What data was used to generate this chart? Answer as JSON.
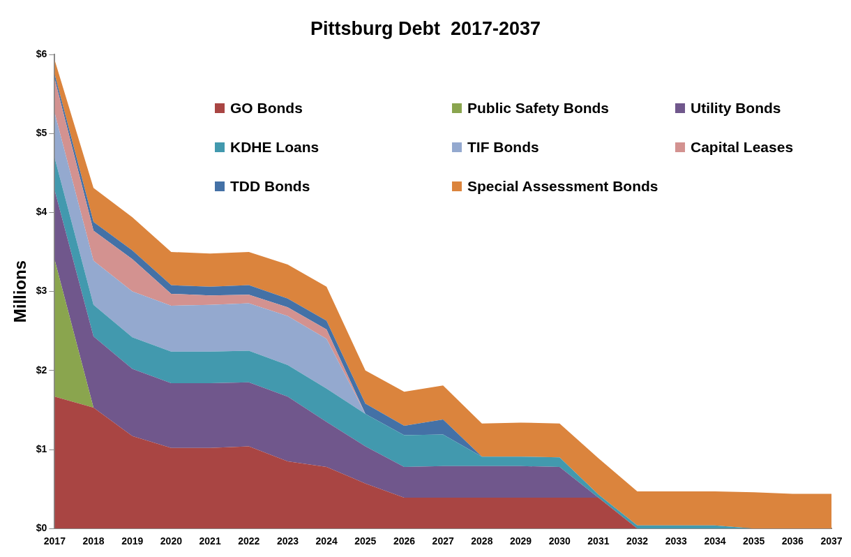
{
  "chart_data": {
    "type": "area",
    "title": "Pittsburg Debt  2017-2037",
    "ylabel": "Millions",
    "stacked": true,
    "legend": "top right",
    "grid": false,
    "categories": [
      "2017",
      "2018",
      "2019",
      "2020",
      "2021",
      "2022",
      "2023",
      "2024",
      "2025",
      "2026",
      "2027",
      "2028",
      "2029",
      "2030",
      "2031",
      "2032",
      "2033",
      "2034",
      "2035",
      "2036",
      "2037"
    ],
    "ylim": [
      0,
      6
    ],
    "yticks": [
      {
        "value": 0,
        "label": "$0"
      },
      {
        "value": 1,
        "label": "$1"
      },
      {
        "value": 2,
        "label": "$2"
      },
      {
        "value": 3,
        "label": "$3"
      },
      {
        "value": 4,
        "label": "$4"
      },
      {
        "value": 5,
        "label": "$5"
      },
      {
        "value": 6,
        "label": "$6"
      }
    ],
    "series": [
      {
        "name": "GO Bonds",
        "color": "#a94543",
        "values": [
          1.67,
          1.53,
          1.17,
          1.02,
          1.02,
          1.04,
          0.85,
          0.78,
          0.57,
          0.39,
          0.39,
          0.39,
          0.39,
          0.39,
          0.39,
          0,
          0,
          0,
          0,
          0,
          0
        ]
      },
      {
        "name": "Public Safety Bonds",
        "color": "#8aa54e",
        "values": [
          1.73,
          0,
          0,
          0,
          0,
          0,
          0,
          0,
          0,
          0,
          0,
          0,
          0,
          0,
          0,
          0,
          0,
          0,
          0,
          0,
          0
        ]
      },
      {
        "name": "Utility Bonds",
        "color": "#70578c",
        "values": [
          0.88,
          0.9,
          0.85,
          0.82,
          0.82,
          0.81,
          0.82,
          0.57,
          0.47,
          0.39,
          0.4,
          0.4,
          0.4,
          0.39,
          0,
          0,
          0,
          0,
          0,
          0,
          0
        ]
      },
      {
        "name": "KDHE Loans",
        "color": "#4299ae",
        "values": [
          0.41,
          0.4,
          0.4,
          0.4,
          0.4,
          0.4,
          0.4,
          0.42,
          0.41,
          0.4,
          0.4,
          0.12,
          0.12,
          0.12,
          0.04,
          0.04,
          0.04,
          0.04,
          0,
          0,
          0
        ]
      },
      {
        "name": "TIF Bonds",
        "color": "#94a9cf",
        "values": [
          0.57,
          0.56,
          0.58,
          0.58,
          0.59,
          0.6,
          0.62,
          0.63,
          0,
          0,
          0,
          0,
          0,
          0,
          0,
          0,
          0,
          0,
          0,
          0,
          0
        ]
      },
      {
        "name": "Capital Leases",
        "color": "#d39290",
        "values": [
          0.43,
          0.38,
          0.41,
          0.15,
          0.12,
          0.11,
          0.11,
          0.12,
          0,
          0,
          0,
          0,
          0,
          0,
          0,
          0,
          0,
          0,
          0,
          0,
          0
        ]
      },
      {
        "name": "TDD Bonds",
        "color": "#4471a6",
        "values": [
          0.06,
          0.11,
          0.11,
          0.11,
          0.11,
          0.12,
          0.11,
          0.11,
          0.13,
          0.12,
          0.19,
          0,
          0,
          0,
          0,
          0,
          0,
          0,
          0,
          0,
          0
        ]
      },
      {
        "name": "Special Assessment Bonds",
        "color": "#db843d",
        "values": [
          0.18,
          0.43,
          0.42,
          0.42,
          0.42,
          0.42,
          0.43,
          0.43,
          0.42,
          0.43,
          0.43,
          0.42,
          0.43,
          0.43,
          0.46,
          0.43,
          0.43,
          0.43,
          0.46,
          0.44,
          0.44
        ]
      }
    ]
  }
}
